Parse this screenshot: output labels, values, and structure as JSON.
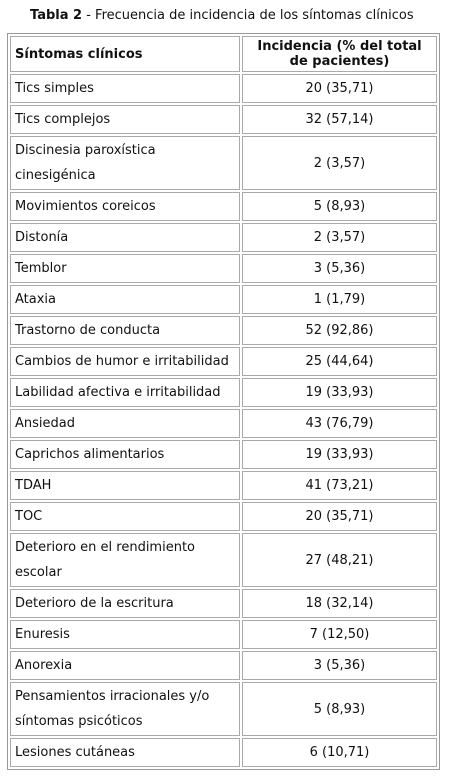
{
  "caption": {
    "label": "Tabla 2",
    "text": "- Frecuencia de incidencia de los síntomas clínicos"
  },
  "table": {
    "header": [
      "Síntomas clínicos",
      "Incidencia (% del total de pacientes)"
    ],
    "rows": [
      [
        "Tics simples",
        "20 (35,71)"
      ],
      [
        "Tics complejos",
        "32 (57,14)"
      ],
      [
        "Discinesia paroxística cinesigénica",
        "2 (3,57)"
      ],
      [
        "Movimientos coreicos",
        "5 (8,93)"
      ],
      [
        "Distonía",
        "2 (3,57)"
      ],
      [
        "Temblor",
        "3 (5,36)"
      ],
      [
        "Ataxia",
        "1 (1,79)"
      ],
      [
        "Trastorno de conducta",
        "52 (92,86)"
      ],
      [
        "Cambios de humor e irritabilidad",
        "25 (44,64)"
      ],
      [
        "Labilidad afectiva e irritabilidad",
        "19 (33,93)"
      ],
      [
        "Ansiedad",
        "43 (76,79)"
      ],
      [
        "Caprichos alimentarios",
        "19 (33,93)"
      ],
      [
        "TDAH",
        "41 (73,21)"
      ],
      [
        "TOC",
        "20 (35,71)"
      ],
      [
        "Deterioro en el rendimiento escolar",
        "27 (48,21)"
      ],
      [
        "Deterioro de la escritura",
        "18 (32,14)"
      ],
      [
        "Enuresis",
        "7 (12,50)"
      ],
      [
        "Anorexia",
        "3 (5,36)"
      ],
      [
        "Pensamientos irracionales y/o síntomas psicóticos",
        "5 (8,93)"
      ],
      [
        "Lesiones cutáneas",
        "6 (10,71)"
      ]
    ]
  }
}
